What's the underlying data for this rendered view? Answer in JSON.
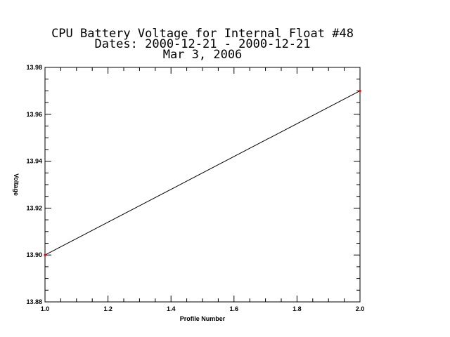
{
  "chart_data": {
    "type": "line",
    "title_lines": [
      "CPU Battery Voltage for Internal Float #48",
      "Dates:  2000-12-21 -  2000-12-21",
      "Mar  3, 2006"
    ],
    "xlabel": "Profile Number",
    "ylabel": "Voltage",
    "xlim": [
      1.0,
      2.0
    ],
    "ylim": [
      13.88,
      13.98
    ],
    "x_ticks": [
      "1.0",
      "1.2",
      "1.4",
      "1.6",
      "1.8",
      "2.0"
    ],
    "y_ticks": [
      "13.88",
      "13.90",
      "13.92",
      "13.94",
      "13.96",
      "13.98"
    ],
    "x_tick_values": [
      1.0,
      1.2,
      1.4,
      1.6,
      1.8,
      2.0
    ],
    "y_tick_values": [
      13.88,
      13.9,
      13.92,
      13.94,
      13.96,
      13.98
    ],
    "series": [
      {
        "x": [
          1,
          2
        ],
        "y": [
          13.9,
          13.97
        ]
      }
    ],
    "grid": false,
    "line_color": "#000000",
    "marker_color": "#ff0000"
  }
}
